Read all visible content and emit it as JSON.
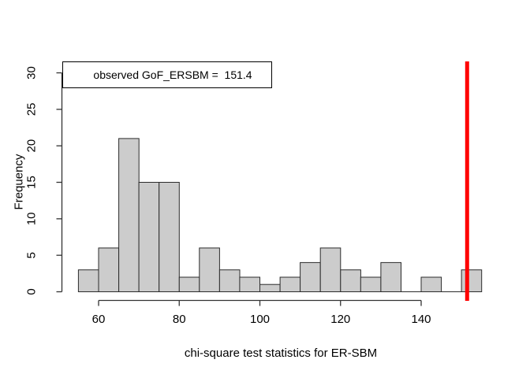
{
  "chart_data": {
    "type": "bar",
    "subtype": "histogram",
    "title": "",
    "xlabel": "chi-square test statistics for ER-SBM",
    "ylabel": "Frequency",
    "bin_start": 55,
    "bin_width": 5,
    "counts": [
      3,
      6,
      21,
      15,
      15,
      2,
      6,
      3,
      2,
      1,
      2,
      4,
      6,
      3,
      2,
      4,
      0,
      2,
      0,
      3
    ],
    "x_ticks": [
      60,
      80,
      100,
      120,
      140
    ],
    "y_ticks": [
      0,
      5,
      10,
      15,
      20,
      25,
      30
    ],
    "xlim": [
      51,
      159
    ],
    "ylim": [
      0,
      30
    ],
    "grid": false,
    "legend_position": "top-left",
    "annotation": {
      "label": "observed GoF_ERSBM =  151.4",
      "observed_value": 151.4
    },
    "colors": {
      "bar_fill": "#cccccc",
      "bar_border": "#2b2b2b",
      "axis": "#333333",
      "text": "#000000",
      "observed_line": "#ff0000",
      "legend_fill": "#ffffff",
      "legend_border": "#000000"
    }
  }
}
